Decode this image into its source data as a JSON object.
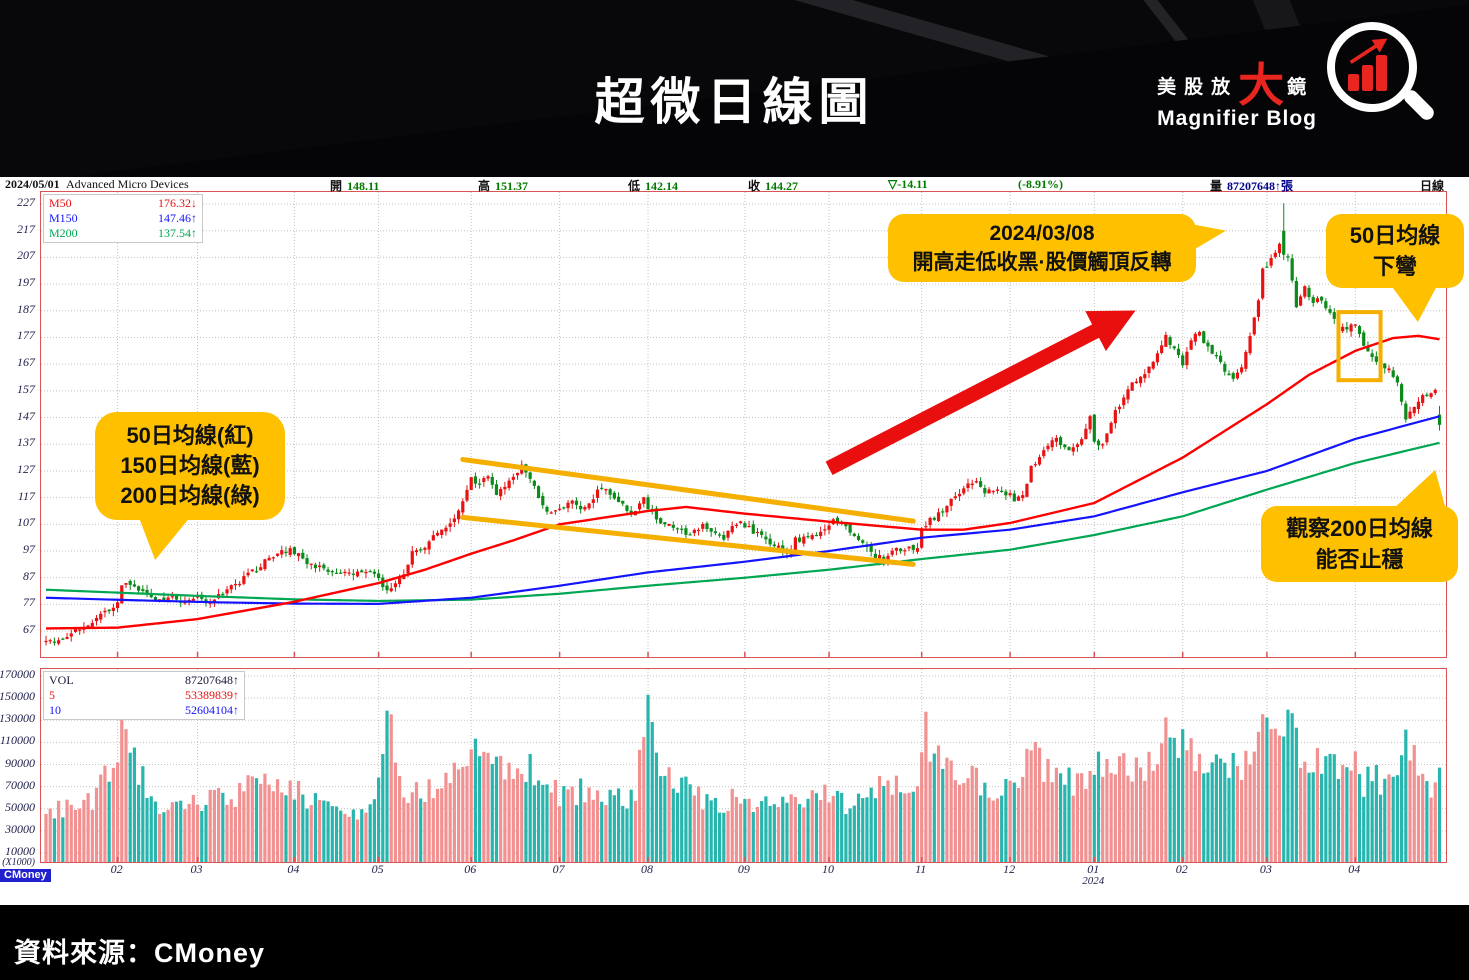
{
  "header": {
    "title": "超微日線圖"
  },
  "logo": {
    "part1": "美股放",
    "big": "大",
    "part2": "鏡",
    "subtitle": "Magnifier Blog"
  },
  "badge": "CMoney",
  "footer": {
    "source": "資料來源：CMoney"
  },
  "info": {
    "date": "2024/05/01",
    "name": "Advanced Micro Devices",
    "open_l": "開",
    "open_v": "148.11",
    "high_l": "高",
    "high_v": "151.37",
    "low_l": "低",
    "low_v": "142.14",
    "close_l": "收",
    "close_v": "144.27",
    "change": "▽-14.11",
    "pct": "(-8.91%)",
    "vol_l": "量",
    "vol_v": "87207648↑張",
    "period": "日線"
  },
  "annotations": {
    "ma_bubble": {
      "l1": "50日均線(紅)",
      "l2": "150日均線(藍)",
      "l3": "200日均線(綠)"
    },
    "peak_bubble": {
      "l1": "2024/03/08",
      "l2": "開高走低收黑·股價觸頂反轉"
    },
    "bend_bubble": {
      "l1": "50日均線",
      "l2": "下彎"
    },
    "ma200_bubble": {
      "l1": "觀察200日均線",
      "l2": "能否止穩"
    }
  },
  "chart_data": {
    "type": "candlestick",
    "symbol": "Advanced Micro Devices",
    "last_date": "2024/05/01",
    "period": "daily",
    "last_ohlc": {
      "open": 148.11,
      "high": 151.37,
      "low": 142.14,
      "close": 144.27,
      "change": -14.11,
      "change_pct": -8.91,
      "volume": 87207648
    },
    "y_ticks": [
      227,
      217,
      207,
      197,
      187,
      177,
      167,
      157,
      147,
      137,
      127,
      117,
      107,
      97,
      87,
      77,
      67
    ],
    "y_range": [
      57.3,
      231.5
    ],
    "vol_ticks": [
      170000,
      150000,
      130000,
      110000,
      90000,
      70000,
      50000,
      30000,
      10000
    ],
    "vol_unit": "(X1000)",
    "vol_range": [
      0,
      176000
    ],
    "x_ticks": [
      {
        "label": "02",
        "day": 17
      },
      {
        "label": "03",
        "day": 36
      },
      {
        "label": "04",
        "day": 59
      },
      {
        "label": "05",
        "day": 79
      },
      {
        "label": "06",
        "day": 101
      },
      {
        "label": "07",
        "day": 122
      },
      {
        "label": "08",
        "day": 143
      },
      {
        "label": "09",
        "day": 166
      },
      {
        "label": "10",
        "day": 186
      },
      {
        "label": "11",
        "day": 208
      },
      {
        "label": "12",
        "day": 229
      },
      {
        "label": "01",
        "day": 249,
        "sub": "2024"
      },
      {
        "label": "02",
        "day": 270
      },
      {
        "label": "03",
        "day": 290
      },
      {
        "label": "04",
        "day": 311
      }
    ],
    "total_days": 332,
    "ma_legend": [
      {
        "label": "M50",
        "value": "176.32↓",
        "color": "#E81212"
      },
      {
        "label": "M150",
        "value": "147.46↑",
        "color": "#1414FF"
      },
      {
        "label": "M200",
        "value": "137.54↑",
        "color": "#00A651"
      }
    ],
    "vol_legend": [
      {
        "label": "VOL",
        "value": "87207648↑",
        "color": "#16163A"
      },
      {
        "label": "5",
        "value": "53389839↑",
        "color": "#E81212"
      },
      {
        "label": "10",
        "value": "52604104↑",
        "color": "#1414FF"
      }
    ],
    "colors": {
      "up": "#E81212",
      "down": "#0C8A1A",
      "vol_up": "#F19191",
      "vol_down": "#27B5AD",
      "m50": "#FF0000",
      "m150": "#1414FF",
      "m200": "#00A651",
      "overlay": "#F5AF00",
      "arrow": "#E90F0F",
      "grid": "#C4C4C4",
      "border": "#D95454"
    },
    "close_keyframes": [
      [
        0,
        64.5
      ],
      [
        2,
        63.2
      ],
      [
        6,
        66
      ],
      [
        10,
        69.5
      ],
      [
        14,
        73.5
      ],
      [
        16,
        75.2
      ],
      [
        17,
        77
      ],
      [
        18,
        84.6
      ],
      [
        20,
        83.8
      ],
      [
        23,
        81.3
      ],
      [
        26,
        78.6
      ],
      [
        29,
        79.8
      ],
      [
        33,
        78.2
      ],
      [
        36,
        79.8
      ],
      [
        38,
        77.4
      ],
      [
        41,
        80.2
      ],
      [
        45,
        84.5
      ],
      [
        49,
        89
      ],
      [
        53,
        94
      ],
      [
        58,
        98
      ],
      [
        60,
        95.3
      ],
      [
        63,
        92.1
      ],
      [
        66,
        90
      ],
      [
        69,
        88.8
      ],
      [
        72,
        87.8
      ],
      [
        75,
        88.5
      ],
      [
        78,
        89.4
      ],
      [
        80,
        83.2
      ],
      [
        81,
        81.8
      ],
      [
        83,
        86
      ],
      [
        85,
        89.2
      ],
      [
        87,
        95.8
      ],
      [
        89,
        97.5
      ],
      [
        91,
        101
      ],
      [
        93,
        104.5
      ],
      [
        95,
        106.2
      ],
      [
        97,
        108.3
      ],
      [
        99,
        115
      ],
      [
        100,
        120
      ],
      [
        101,
        124.5
      ],
      [
        103,
        121.5
      ],
      [
        105,
        125
      ],
      [
        107,
        117.5
      ],
      [
        109,
        121
      ],
      [
        111,
        125
      ],
      [
        113,
        129
      ],
      [
        114,
        126.5
      ],
      [
        116,
        121
      ],
      [
        118,
        113.7
      ],
      [
        120,
        110.5
      ],
      [
        122,
        113
      ],
      [
        125,
        115.5
      ],
      [
        128,
        112.8
      ],
      [
        131,
        119
      ],
      [
        133,
        120.5
      ],
      [
        135,
        117
      ],
      [
        138,
        112
      ],
      [
        140,
        111
      ],
      [
        142,
        116.5
      ],
      [
        143,
        113.5
      ],
      [
        145,
        109
      ],
      [
        148,
        107
      ],
      [
        150,
        105.5
      ],
      [
        153,
        102.5
      ],
      [
        156,
        107
      ],
      [
        158,
        105
      ],
      [
        161,
        102
      ],
      [
        163,
        105.8
      ],
      [
        165,
        108
      ],
      [
        168,
        104
      ],
      [
        171,
        101
      ],
      [
        174,
        98
      ],
      [
        176,
        95.5
      ],
      [
        178,
        101
      ],
      [
        181,
        102.9
      ],
      [
        183,
        102
      ],
      [
        185,
        105
      ],
      [
        187,
        110
      ],
      [
        189,
        107
      ],
      [
        192,
        102
      ],
      [
        195,
        98
      ],
      [
        197,
        95
      ],
      [
        199,
        93.7
      ],
      [
        201,
        96.5
      ],
      [
        204,
        98
      ],
      [
        206,
        98.5
      ],
      [
        207,
        97.8
      ],
      [
        208,
        106
      ],
      [
        210,
        108.5
      ],
      [
        213,
        112
      ],
      [
        216,
        118
      ],
      [
        219,
        121.5
      ],
      [
        221,
        122.5
      ],
      [
        223,
        119
      ],
      [
        226,
        121
      ],
      [
        228,
        119
      ],
      [
        230,
        116.3
      ],
      [
        232,
        118
      ],
      [
        234,
        128.3
      ],
      [
        236,
        133
      ],
      [
        238,
        137
      ],
      [
        240,
        139
      ],
      [
        242,
        136
      ],
      [
        244,
        135
      ],
      [
        246,
        140
      ],
      [
        248,
        147.4
      ],
      [
        249,
        138.6
      ],
      [
        251,
        136
      ],
      [
        253,
        146
      ],
      [
        255,
        152
      ],
      [
        257,
        158
      ],
      [
        259,
        160
      ],
      [
        261,
        163
      ],
      [
        263,
        168
      ],
      [
        265,
        174
      ],
      [
        266,
        177
      ],
      [
        268,
        172
      ],
      [
        270,
        167
      ],
      [
        272,
        177
      ],
      [
        274,
        178
      ],
      [
        276,
        174
      ],
      [
        278,
        170
      ],
      [
        280,
        165
      ],
      [
        282,
        161
      ],
      [
        284,
        166
      ],
      [
        286,
        177
      ],
      [
        288,
        192
      ],
      [
        289,
        202
      ],
      [
        291,
        207
      ],
      [
        293,
        211
      ],
      [
        294,
        208
      ],
      [
        295,
        207
      ],
      [
        296,
        198
      ],
      [
        297,
        188
      ],
      [
        299,
        195
      ],
      [
        301,
        190
      ],
      [
        303,
        192
      ],
      [
        305,
        186
      ],
      [
        307,
        180
      ],
      [
        309,
        180.8
      ],
      [
        311,
        181
      ],
      [
        313,
        175
      ],
      [
        315,
        170
      ],
      [
        317,
        168
      ],
      [
        319,
        165
      ],
      [
        321,
        160
      ],
      [
        322,
        154
      ],
      [
        323,
        147
      ],
      [
        325,
        151
      ],
      [
        327,
        155
      ],
      [
        329,
        157
      ],
      [
        330,
        158.4
      ],
      [
        331,
        144.27
      ]
    ],
    "volume_keyframes": [
      [
        0,
        45000
      ],
      [
        10,
        55000
      ],
      [
        17,
        90000
      ],
      [
        18,
        140000
      ],
      [
        20,
        95000
      ],
      [
        25,
        60000
      ],
      [
        30,
        50000
      ],
      [
        36,
        55000
      ],
      [
        45,
        60000
      ],
      [
        50,
        75000
      ],
      [
        58,
        68000
      ],
      [
        65,
        55000
      ],
      [
        72,
        48000
      ],
      [
        78,
        52000
      ],
      [
        80,
        90000
      ],
      [
        81,
        132000
      ],
      [
        85,
        70000
      ],
      [
        90,
        65000
      ],
      [
        95,
        72000
      ],
      [
        99,
        98000
      ],
      [
        100,
        110000
      ],
      [
        101,
        108000
      ],
      [
        105,
        85000
      ],
      [
        110,
        90000
      ],
      [
        113,
        95000
      ],
      [
        116,
        80000
      ],
      [
        120,
        65000
      ],
      [
        125,
        62000
      ],
      [
        130,
        70000
      ],
      [
        135,
        60000
      ],
      [
        140,
        58000
      ],
      [
        143,
        170000
      ],
      [
        144,
        120000
      ],
      [
        146,
        90000
      ],
      [
        150,
        70000
      ],
      [
        155,
        60000
      ],
      [
        160,
        55000
      ],
      [
        165,
        58000
      ],
      [
        170,
        52000
      ],
      [
        175,
        55000
      ],
      [
        180,
        60000
      ],
      [
        185,
        65000
      ],
      [
        190,
        55000
      ],
      [
        195,
        60000
      ],
      [
        199,
        70000
      ],
      [
        204,
        65000
      ],
      [
        207,
        80000
      ],
      [
        208,
        125000
      ],
      [
        210,
        115000
      ],
      [
        215,
        85000
      ],
      [
        220,
        75000
      ],
      [
        225,
        65000
      ],
      [
        230,
        68000
      ],
      [
        234,
        105000
      ],
      [
        236,
        95000
      ],
      [
        240,
        80000
      ],
      [
        245,
        70000
      ],
      [
        248,
        85000
      ],
      [
        249,
        90000
      ],
      [
        253,
        80000
      ],
      [
        257,
        85000
      ],
      [
        261,
        90000
      ],
      [
        263,
        95000
      ],
      [
        265,
        100000
      ],
      [
        266,
        115000
      ],
      [
        268,
        105000
      ],
      [
        270,
        118000
      ],
      [
        272,
        110000
      ],
      [
        275,
        95000
      ],
      [
        278,
        85000
      ],
      [
        282,
        90000
      ],
      [
        286,
        100000
      ],
      [
        288,
        135000
      ],
      [
        289,
        130000
      ],
      [
        291,
        120000
      ],
      [
        293,
        115000
      ],
      [
        295,
        130000
      ],
      [
        297,
        110000
      ],
      [
        300,
        95000
      ],
      [
        303,
        85000
      ],
      [
        305,
        90000
      ],
      [
        308,
        80000
      ],
      [
        311,
        85000
      ],
      [
        313,
        75000
      ],
      [
        315,
        80000
      ],
      [
        317,
        70000
      ],
      [
        319,
        75000
      ],
      [
        321,
        90000
      ],
      [
        322,
        110000
      ],
      [
        323,
        135000
      ],
      [
        325,
        95000
      ],
      [
        327,
        80000
      ],
      [
        329,
        75000
      ],
      [
        330,
        72000
      ],
      [
        331,
        87207
      ]
    ],
    "ma": {
      "m50": [
        [
          0,
          68
        ],
        [
          17,
          68.3
        ],
        [
          36,
          71.5
        ],
        [
          59,
          78
        ],
        [
          79,
          85
        ],
        [
          90,
          90
        ],
        [
          101,
          96
        ],
        [
          111,
          101
        ],
        [
          122,
          107
        ],
        [
          143,
          112
        ],
        [
          152,
          113.5
        ],
        [
          166,
          111
        ],
        [
          186,
          108
        ],
        [
          208,
          105
        ],
        [
          218,
          105
        ],
        [
          229,
          107.5
        ],
        [
          249,
          115
        ],
        [
          270,
          132
        ],
        [
          290,
          152
        ],
        [
          300,
          163
        ],
        [
          311,
          172
        ],
        [
          320,
          176.8
        ],
        [
          326,
          177.6
        ],
        [
          331,
          176.32
        ]
      ],
      "m150": [
        [
          0,
          79.5
        ],
        [
          20,
          78.6
        ],
        [
          40,
          77.8
        ],
        [
          59,
          77.3
        ],
        [
          79,
          77.2
        ],
        [
          101,
          79.5
        ],
        [
          122,
          84
        ],
        [
          143,
          89
        ],
        [
          166,
          93
        ],
        [
          186,
          97
        ],
        [
          208,
          102
        ],
        [
          229,
          105
        ],
        [
          249,
          110
        ],
        [
          270,
          119
        ],
        [
          290,
          127
        ],
        [
          311,
          139
        ],
        [
          331,
          147.46
        ]
      ],
      "m200": [
        [
          0,
          82.5
        ],
        [
          36,
          80.2
        ],
        [
          59,
          78.9
        ],
        [
          79,
          78.3
        ],
        [
          101,
          78.8
        ],
        [
          122,
          81
        ],
        [
          143,
          84
        ],
        [
          166,
          87
        ],
        [
          186,
          90
        ],
        [
          208,
          94
        ],
        [
          229,
          97.5
        ],
        [
          249,
          103
        ],
        [
          270,
          110
        ],
        [
          290,
          120
        ],
        [
          311,
          130
        ],
        [
          331,
          137.54
        ]
      ]
    },
    "special_days": {
      "294": {
        "open": 217,
        "high": 227.3,
        "low": 206,
        "close": 208
      },
      "331": {
        "open": 148.11,
        "high": 151.37,
        "low": 142.14,
        "close": 144.27,
        "volume": 87207
      }
    },
    "overlays": {
      "channel_upper": [
        [
          99,
          131.3
        ],
        [
          206,
          108.2
        ]
      ],
      "channel_lower": [
        [
          99,
          109.6
        ],
        [
          206,
          92
        ]
      ],
      "arrow": {
        "from": [
          186,
          128
        ],
        "to": [
          255,
          184
        ]
      },
      "highlight_rect": {
        "d0": 307,
        "d1": 317,
        "p0": 161,
        "p1": 186.5
      }
    }
  }
}
